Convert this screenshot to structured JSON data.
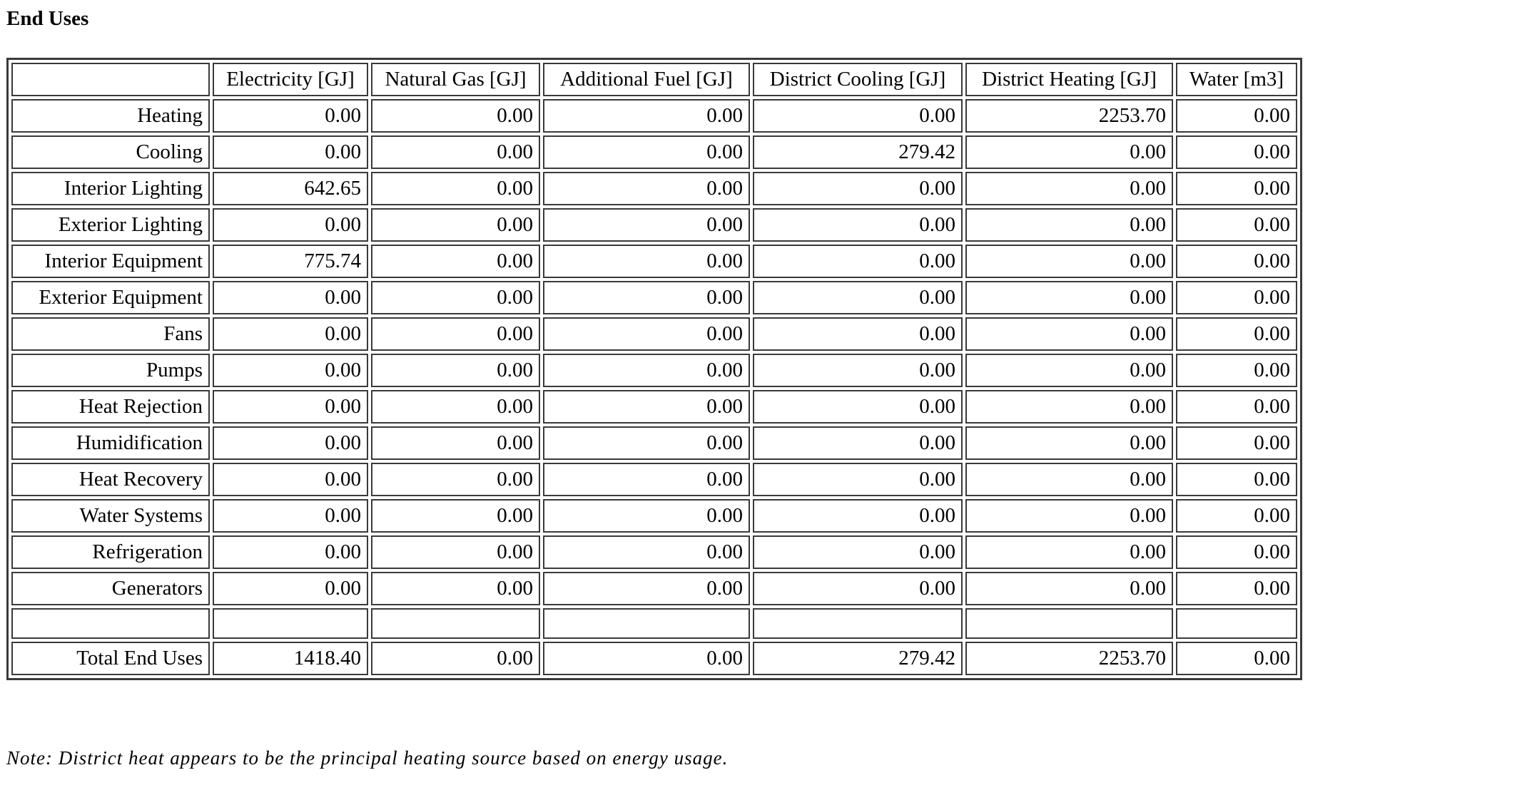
{
  "title": "End Uses",
  "table": {
    "corner": "",
    "columns": [
      "Electricity [GJ]",
      "Natural Gas [GJ]",
      "Additional Fuel [GJ]",
      "District Cooling [GJ]",
      "District Heating [GJ]",
      "Water [m3]"
    ],
    "rows": [
      {
        "label": "Heating",
        "values": [
          "0.00",
          "0.00",
          "0.00",
          "0.00",
          "2253.70",
          "0.00"
        ]
      },
      {
        "label": "Cooling",
        "values": [
          "0.00",
          "0.00",
          "0.00",
          "279.42",
          "0.00",
          "0.00"
        ]
      },
      {
        "label": "Interior Lighting",
        "values": [
          "642.65",
          "0.00",
          "0.00",
          "0.00",
          "0.00",
          "0.00"
        ]
      },
      {
        "label": "Exterior Lighting",
        "values": [
          "0.00",
          "0.00",
          "0.00",
          "0.00",
          "0.00",
          "0.00"
        ]
      },
      {
        "label": "Interior Equipment",
        "values": [
          "775.74",
          "0.00",
          "0.00",
          "0.00",
          "0.00",
          "0.00"
        ]
      },
      {
        "label": "Exterior Equipment",
        "values": [
          "0.00",
          "0.00",
          "0.00",
          "0.00",
          "0.00",
          "0.00"
        ]
      },
      {
        "label": "Fans",
        "values": [
          "0.00",
          "0.00",
          "0.00",
          "0.00",
          "0.00",
          "0.00"
        ]
      },
      {
        "label": "Pumps",
        "values": [
          "0.00",
          "0.00",
          "0.00",
          "0.00",
          "0.00",
          "0.00"
        ]
      },
      {
        "label": "Heat Rejection",
        "values": [
          "0.00",
          "0.00",
          "0.00",
          "0.00",
          "0.00",
          "0.00"
        ]
      },
      {
        "label": "Humidification",
        "values": [
          "0.00",
          "0.00",
          "0.00",
          "0.00",
          "0.00",
          "0.00"
        ]
      },
      {
        "label": "Heat Recovery",
        "values": [
          "0.00",
          "0.00",
          "0.00",
          "0.00",
          "0.00",
          "0.00"
        ]
      },
      {
        "label": "Water Systems",
        "values": [
          "0.00",
          "0.00",
          "0.00",
          "0.00",
          "0.00",
          "0.00"
        ]
      },
      {
        "label": "Refrigeration",
        "values": [
          "0.00",
          "0.00",
          "0.00",
          "0.00",
          "0.00",
          "0.00"
        ]
      },
      {
        "label": "Generators",
        "values": [
          "0.00",
          "0.00",
          "0.00",
          "0.00",
          "0.00",
          "0.00"
        ]
      },
      {
        "label": "",
        "values": [
          "",
          "",
          "",
          "",
          "",
          ""
        ]
      },
      {
        "label": "Total End Uses",
        "values": [
          "1418.40",
          "0.00",
          "0.00",
          "279.42",
          "2253.70",
          "0.00"
        ]
      }
    ]
  },
  "note": "Note: District heat appears to be the principal heating source based on energy usage."
}
